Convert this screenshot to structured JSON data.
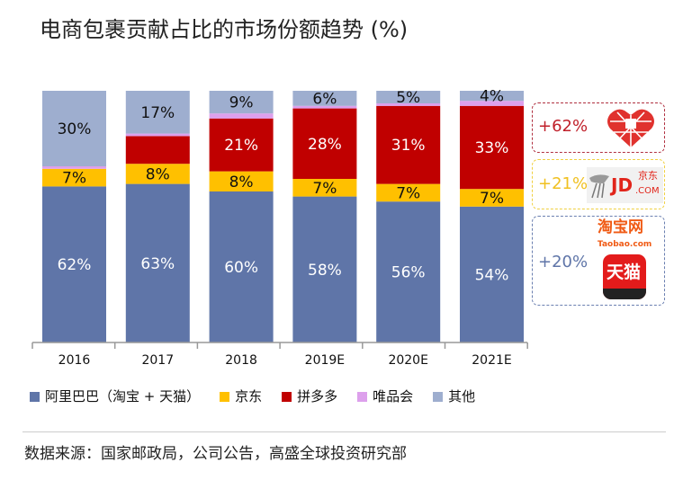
{
  "title": "电商包裹贡献占比的市场份额趋势 (%)",
  "chart_data": {
    "type": "bar",
    "stacked": true,
    "title": "电商包裹贡献占比的市场份额趋势 (%)",
    "categories": [
      "2016",
      "2017",
      "2018",
      "2019E",
      "2020E",
      "2021E"
    ],
    "ylim": [
      0,
      100
    ],
    "grid": false,
    "legend_position": "bottom",
    "series": [
      {
        "name": "阿里巴巴（淘宝 + 天猫）",
        "color": "#5f75a8",
        "values": [
          62,
          63,
          60,
          58,
          56,
          54
        ],
        "labels": [
          "62%",
          "63%",
          "60%",
          "58%",
          "56%",
          "54%"
        ],
        "label_color": "#ffffff"
      },
      {
        "name": "京东",
        "color": "#ffc000",
        "values": [
          7,
          8,
          8,
          7,
          7,
          7
        ],
        "labels": [
          "7%",
          "8%",
          "8%",
          "7%",
          "7%",
          "7%"
        ],
        "label_color": "#111111"
      },
      {
        "name": "拼多多",
        "color": "#c00000",
        "values": [
          0,
          11,
          21,
          28,
          31,
          33
        ],
        "labels": [
          "",
          "",
          "21%",
          "28%",
          "31%",
          "33%"
        ],
        "label_color": "#ffffff"
      },
      {
        "name": "唯品会",
        "color": "#dda0ec",
        "values": [
          1,
          1,
          2,
          1,
          1,
          2
        ],
        "labels": [
          "",
          "",
          "",
          "",
          "",
          ""
        ],
        "label_color": "#111111"
      },
      {
        "name": "其他",
        "color": "#9eaecf",
        "values": [
          30,
          17,
          9,
          6,
          5,
          4
        ],
        "labels": [
          "30%",
          "17%",
          "9%",
          "6%",
          "5%",
          "4%"
        ],
        "label_color": "#111111"
      }
    ]
  },
  "callouts": [
    {
      "value": "+62%",
      "color": "#c0202a",
      "logo": "pinduoduo-logo"
    },
    {
      "value": "+21%",
      "color": "#f0c020",
      "logo": "jd-logo",
      "logo_text": "JD",
      "logo_cn": "京东",
      "logo_suffix": ".COM"
    },
    {
      "value": "+20%",
      "color": "#5f75a8",
      "logo": "taobao-tmall-logo",
      "taobao_cn": "淘宝网",
      "taobao_en": "Taobao.com",
      "tmall_cn": "天猫"
    }
  ],
  "source": "数据来源：国家邮政局，公司公告，高盛全球投资研究部"
}
